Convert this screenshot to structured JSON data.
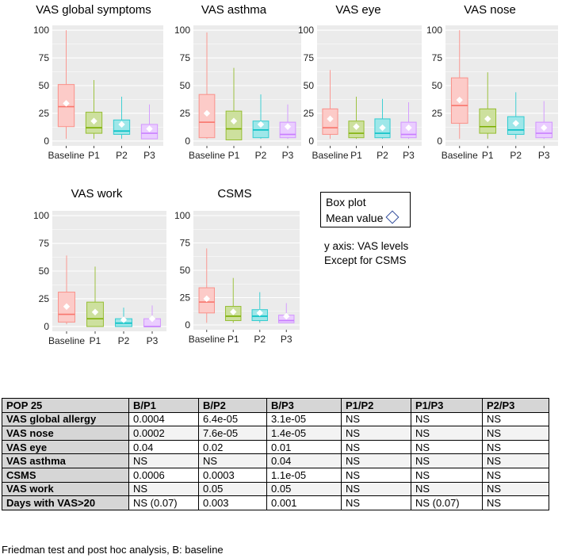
{
  "chart_data": [
    {
      "type": "box",
      "title": "VAS global symptoms",
      "ylim": [
        0,
        100
      ],
      "yticks": [
        0,
        25,
        50,
        75,
        100
      ],
      "categories": [
        "Baseline",
        "P1",
        "P2",
        "P3"
      ],
      "colors": [
        "#f8766d",
        "#7cae00",
        "#00bfc4",
        "#c77cff"
      ],
      "boxes": [
        {
          "min": 2,
          "q1": 13,
          "median": 31,
          "q3": 51,
          "max": 100,
          "mean": 34
        },
        {
          "min": 2,
          "q1": 7,
          "median": 12,
          "q3": 26,
          "max": 55,
          "mean": 18
        },
        {
          "min": 2,
          "q1": 6,
          "median": 9,
          "q3": 19,
          "max": 40,
          "mean": 15
        },
        {
          "min": 2,
          "q1": 2,
          "median": 7,
          "q3": 15,
          "max": 33,
          "mean": 11
        }
      ]
    },
    {
      "type": "box",
      "title": "VAS asthma",
      "ylim": [
        0,
        100
      ],
      "yticks": [
        0,
        25,
        50,
        75,
        100
      ],
      "categories": [
        "Baseline",
        "P1",
        "P2",
        "P3"
      ],
      "colors": [
        "#f8766d",
        "#7cae00",
        "#00bfc4",
        "#c77cff"
      ],
      "boxes": [
        {
          "min": 2,
          "q1": 3,
          "median": 17,
          "q3": 42,
          "max": 98,
          "mean": 25
        },
        {
          "min": 1,
          "q1": 1,
          "median": 11,
          "q3": 27,
          "max": 66,
          "mean": 18
        },
        {
          "min": 2,
          "q1": 3,
          "median": 10,
          "q3": 18,
          "max": 42,
          "mean": 15
        },
        {
          "min": 2,
          "q1": 3,
          "median": 6,
          "q3": 17,
          "max": 33,
          "mean": 13
        }
      ]
    },
    {
      "type": "box",
      "title": "VAS eye",
      "ylim": [
        0,
        100
      ],
      "yticks": [
        0,
        25,
        50,
        75,
        100
      ],
      "categories": [
        "Baseline",
        "P1",
        "P2",
        "P3"
      ],
      "colors": [
        "#f8766d",
        "#7cae00",
        "#00bfc4",
        "#c77cff"
      ],
      "boxes": [
        {
          "min": 2,
          "q1": 6,
          "median": 12,
          "q3": 29,
          "max": 64,
          "mean": 20
        },
        {
          "min": 2,
          "q1": 3,
          "median": 7,
          "q3": 18,
          "max": 40,
          "mean": 13
        },
        {
          "min": 2,
          "q1": 3,
          "median": 7,
          "q3": 20,
          "max": 38,
          "mean": 12
        },
        {
          "min": 2,
          "q1": 3,
          "median": 6,
          "q3": 17,
          "max": 35,
          "mean": 12
        }
      ]
    },
    {
      "type": "box",
      "title": "VAS nose",
      "ylim": [
        0,
        100
      ],
      "yticks": [
        0,
        25,
        50,
        75,
        100
      ],
      "categories": [
        "Baseline",
        "P1",
        "P2",
        "P3"
      ],
      "colors": [
        "#f8766d",
        "#7cae00",
        "#00bfc4",
        "#c77cff"
      ],
      "boxes": [
        {
          "min": 2,
          "q1": 16,
          "median": 32,
          "q3": 57,
          "max": 100,
          "mean": 37
        },
        {
          "min": 2,
          "q1": 7,
          "median": 13,
          "q3": 29,
          "max": 62,
          "mean": 20
        },
        {
          "min": 2,
          "q1": 6,
          "median": 10,
          "q3": 22,
          "max": 44,
          "mean": 16
        },
        {
          "min": 2,
          "q1": 3,
          "median": 7,
          "q3": 17,
          "max": 36,
          "mean": 12
        }
      ]
    },
    {
      "type": "box",
      "title": "VAS work",
      "ylim": [
        0,
        100
      ],
      "yticks": [
        0,
        25,
        50,
        75,
        100
      ],
      "categories": [
        "Baseline",
        "P1",
        "P2",
        "P3"
      ],
      "colors": [
        "#f8766d",
        "#7cae00",
        "#00bfc4",
        "#c77cff"
      ],
      "boxes": [
        {
          "min": 2,
          "q1": 4,
          "median": 11,
          "q3": 31,
          "max": 64,
          "mean": 18
        },
        {
          "min": 0,
          "q1": 0,
          "median": 7,
          "q3": 22,
          "max": 54,
          "mean": 13
        },
        {
          "min": 0,
          "q1": 0,
          "median": 3,
          "q3": 7,
          "max": 17,
          "mean": 6
        },
        {
          "min": 0,
          "q1": 0,
          "median": 0,
          "q3": 7,
          "max": 19,
          "mean": 7
        }
      ]
    },
    {
      "type": "box",
      "title": "CSMS",
      "ylim": [
        0,
        100
      ],
      "yticks": [
        0,
        25,
        50,
        75,
        100
      ],
      "categories": [
        "Baseline",
        "P1",
        "P2",
        "P3"
      ],
      "colors": [
        "#f8766d",
        "#7cae00",
        "#00bfc4",
        "#c77cff"
      ],
      "boxes": [
        {
          "min": 2,
          "q1": 11,
          "median": 21,
          "q3": 34,
          "max": 70,
          "mean": 24
        },
        {
          "min": 2,
          "q1": 4,
          "median": 8,
          "q3": 17,
          "max": 43,
          "mean": 12
        },
        {
          "min": 2,
          "q1": 4,
          "median": 8,
          "q3": 14,
          "max": 30,
          "mean": 11
        },
        {
          "min": 2,
          "q1": 2,
          "median": 4,
          "q3": 9,
          "max": 20,
          "mean": 8
        }
      ]
    }
  ],
  "legend": {
    "box_label": "Box plot",
    "mean_label": "Mean value"
  },
  "notes": {
    "line1": "y axis: VAS levels",
    "line2": "Except for CSMS"
  },
  "table": {
    "header": [
      "POP 25",
      "B/P1",
      "B/P2",
      "B/P3",
      "P1/P2",
      "P1/P3",
      "P2/P3"
    ],
    "rows": [
      [
        "VAS global allergy",
        "0.0004",
        "6.4e-05",
        "3.1e-05",
        "NS",
        "NS",
        "NS"
      ],
      [
        "VAS nose",
        "0.0002",
        "7.6e-05",
        "1.4e-05",
        "NS",
        "NS",
        "NS"
      ],
      [
        "VAS eye",
        "0.04",
        "0.02",
        "0.01",
        "NS",
        "NS",
        "NS"
      ],
      [
        "VAS asthma",
        "NS",
        "NS",
        "0.04",
        "NS",
        "NS",
        "NS"
      ],
      [
        "CSMS",
        "0.0006",
        "0.0003",
        "1.1e-05",
        "NS",
        "NS",
        "NS"
      ],
      [
        "VAS work",
        "NS",
        "0.05",
        "0.05",
        "NS",
        "NS",
        "NS"
      ],
      [
        "Days with VAS>20",
        "NS (0.07)",
        "0.003",
        "0.001",
        "NS",
        "NS (0.07)",
        "NS"
      ]
    ]
  },
  "caption": "Friedman test and post hoc analysis, B: baseline"
}
